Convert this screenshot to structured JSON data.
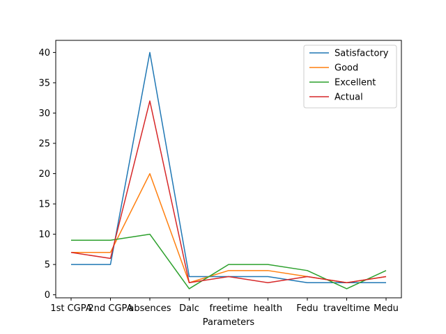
{
  "chart_data": {
    "type": "line",
    "title": "",
    "xlabel": "Parameters",
    "ylabel": "",
    "categories": [
      "1st CGPA",
      "2nd CGPA",
      "absences",
      "Dalc",
      "freetime",
      "health",
      "Fedu",
      "traveltime",
      "Medu"
    ],
    "ylim": [
      -0.5,
      42
    ],
    "yticks": [
      0,
      5,
      10,
      15,
      20,
      25,
      30,
      35,
      40
    ],
    "grid": false,
    "legend_position": "top-right",
    "series": [
      {
        "name": "Satisfactory",
        "color": "#1f77b4",
        "values": [
          5,
          5,
          40,
          3,
          3,
          3,
          2,
          2,
          2
        ]
      },
      {
        "name": "Good",
        "color": "#ff7f0e",
        "values": [
          7,
          7,
          20,
          2,
          4,
          4,
          3,
          2,
          3
        ]
      },
      {
        "name": "Excellent",
        "color": "#2ca02c",
        "values": [
          9,
          9,
          10,
          1,
          5,
          5,
          4,
          1,
          4
        ]
      },
      {
        "name": "Actual",
        "color": "#d62728",
        "values": [
          7,
          6,
          32,
          2,
          3,
          2,
          3,
          2,
          3
        ]
      }
    ]
  }
}
